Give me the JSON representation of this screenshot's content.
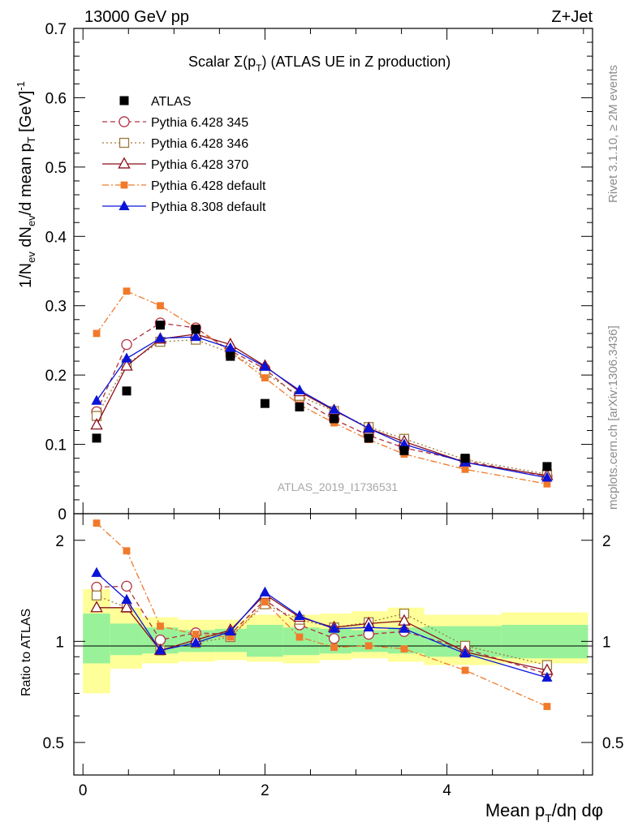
{
  "header": {
    "left": "13000 GeV pp",
    "right": "Z+Jet"
  },
  "side_labels": {
    "top": "Rivet 3.1.10, ≥ 2M events",
    "bottom": "mcplots.cern.ch [arXiv:1306.3436]"
  },
  "chart_data": [
    {
      "type": "line",
      "title_main": "Scalar Σ(p",
      "title_sub": "T",
      "title_rest": ") (ATLAS UE in Z production)",
      "ylabel": "1/N_ev dN_ev/d mean p_T [GeV]^-1",
      "ylabel_parts": {
        "a": "1/N",
        "b": "ev",
        "c": " dN",
        "d": "ev",
        "e": "/d mean p",
        "f": "T",
        "g": " [GeV]",
        "h": "-1"
      },
      "analysis": "ATLAS_2019_I1736531",
      "ylim": [
        0,
        0.7
      ],
      "xlim": [
        -0.1,
        5.6
      ],
      "yticks": [
        "0",
        "0.1",
        "0.2",
        "0.3",
        "0.4",
        "0.5",
        "0.6",
        "0.7"
      ],
      "legend_position": "top-left",
      "data": {
        "name": "ATLAS",
        "x": [
          0.15,
          0.48,
          0.85,
          1.24,
          1.62,
          2.0,
          2.38,
          2.76,
          3.14,
          3.53,
          4.2,
          5.1
        ],
        "y": [
          0.109,
          0.177,
          0.272,
          0.266,
          0.227,
          0.159,
          0.154,
          0.137,
          0.109,
          0.091,
          0.08,
          0.068
        ]
      },
      "series": [
        {
          "name": "Pythia 6.428 345",
          "color": "#b03040",
          "marker": "open-circle",
          "dash": "6,4",
          "y": [
            0.147,
            0.244,
            0.275,
            0.268,
            0.235,
            0.209,
            0.166,
            0.136,
            0.113,
            0.095,
            0.076,
            0.054
          ]
        },
        {
          "name": "Pythia 6.428 346",
          "color": "#9c7a3a",
          "marker": "open-square",
          "dash": "2,3",
          "y": [
            0.141,
            0.216,
            0.248,
            0.251,
            0.232,
            0.203,
            0.17,
            0.148,
            0.125,
            0.108,
            0.078,
            0.057
          ]
        },
        {
          "name": "Pythia 6.428 370",
          "color": "#8b0e1a",
          "marker": "open-triangle",
          "dash": "",
          "y": [
            0.128,
            0.213,
            0.252,
            0.259,
            0.244,
            0.213,
            0.176,
            0.149,
            0.123,
            0.104,
            0.074,
            0.055
          ]
        },
        {
          "name": "Pythia 6.428 default",
          "color": "#f07a2a",
          "marker": "filled-square",
          "dash": "8,3,2,3",
          "y": [
            0.26,
            0.321,
            0.3,
            0.268,
            0.233,
            0.196,
            0.157,
            0.131,
            0.107,
            0.086,
            0.064,
            0.043
          ]
        },
        {
          "name": "Pythia 8.308 default",
          "color": "#0a14d8",
          "marker": "filled-triangle",
          "dash": "",
          "y": [
            0.163,
            0.224,
            0.253,
            0.255,
            0.239,
            0.212,
            0.178,
            0.15,
            0.123,
            0.1,
            0.074,
            0.052
          ]
        }
      ]
    },
    {
      "type": "line",
      "ylabel": "Ratio to ATLAS",
      "xlabel": "Mean p_T/dη dφ",
      "xlabel_parts": {
        "a": "Mean p",
        "b": "T",
        "c": "/dη dφ"
      },
      "ylim": [
        0.4,
        2.4
      ],
      "yticks": [
        "0.5",
        "1",
        "2"
      ],
      "xticks": [
        "0",
        "2",
        "4"
      ],
      "bands": {
        "edges": [
          0.0,
          0.3,
          0.65,
          1.05,
          1.45,
          1.8,
          2.2,
          2.6,
          2.95,
          3.35,
          3.75,
          4.6,
          5.55
        ],
        "green_lo": [
          0.86,
          0.91,
          0.92,
          0.93,
          0.93,
          0.9,
          0.91,
          0.92,
          0.93,
          0.92,
          0.9,
          0.89
        ],
        "green_hi": [
          1.21,
          1.13,
          1.1,
          1.08,
          1.09,
          1.12,
          1.1,
          1.09,
          1.08,
          1.1,
          1.11,
          1.12
        ],
        "yellow_lo": [
          0.7,
          0.83,
          0.86,
          0.87,
          0.88,
          0.87,
          0.86,
          0.88,
          0.89,
          0.87,
          0.85,
          0.86
        ],
        "yellow_hi": [
          1.43,
          1.26,
          1.18,
          1.16,
          1.16,
          1.2,
          1.2,
          1.21,
          1.23,
          1.26,
          1.2,
          1.22
        ]
      },
      "series_ratio": [
        {
          "name": "Pythia 6.428 345",
          "y": [
            1.45,
            1.46,
            1.01,
            1.06,
            1.05,
            1.33,
            1.12,
            1.02,
            1.05,
            1.07,
            0.95,
            0.8
          ]
        },
        {
          "name": "Pythia 6.428 346",
          "y": [
            1.37,
            1.26,
            0.94,
            0.99,
            1.03,
            1.29,
            1.16,
            1.1,
            1.14,
            1.21,
            0.97,
            0.85
          ]
        },
        {
          "name": "Pythia 6.428 370",
          "y": [
            1.26,
            1.26,
            0.94,
            1.01,
            1.08,
            1.38,
            1.18,
            1.1,
            1.13,
            1.15,
            0.93,
            0.82
          ]
        },
        {
          "name": "Pythia 6.428 default",
          "y": [
            2.25,
            1.86,
            1.11,
            1.05,
            1.03,
            1.31,
            1.03,
            0.96,
            0.97,
            0.95,
            0.82,
            0.64
          ]
        },
        {
          "name": "Pythia 8.308 default",
          "y": [
            1.6,
            1.33,
            0.94,
            0.99,
            1.07,
            1.4,
            1.19,
            1.09,
            1.1,
            1.09,
            0.92,
            0.78
          ]
        }
      ]
    }
  ]
}
